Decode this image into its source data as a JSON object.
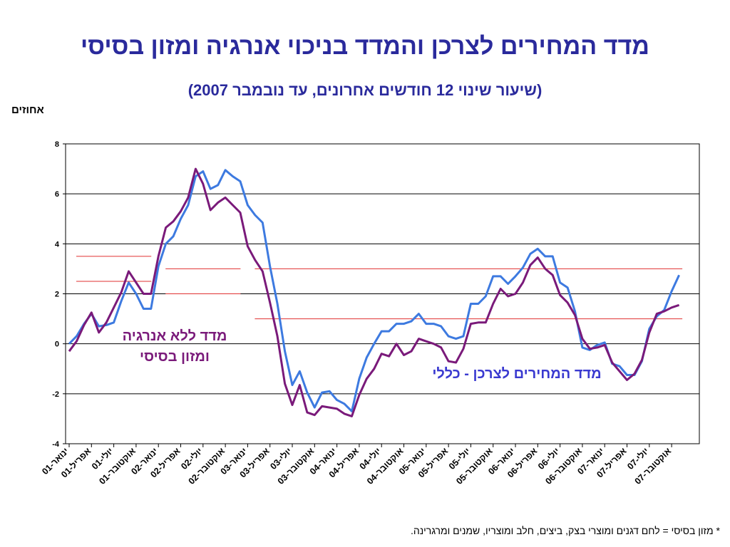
{
  "title": "מדד המחירים לצרכן והמדד בניכוי אנרגיה ומזון בסיסי",
  "subtitle": "(שיעור שינוי 12 חודשים אחרונים, עד נובמבר 2007)",
  "unit_label": "אחוזים",
  "footnote": "* מזון בסיסי = לחם דגנים ומוצרי בצק, ביצים, חלב ומוצריו, שמנים ומרגרינה.",
  "chart_data": {
    "type": "line",
    "title": "מדד המחירים לצרכן והמדד בניכוי אנרגיה ומזון בסיסי",
    "subtitle": "(שיעור שינוי 12 חודשים אחרונים, עד נובמבר 2007)",
    "ylabel": "אחוזים",
    "xlabel": "",
    "ylim": [
      -4,
      8
    ],
    "yticks": [
      "8",
      "6",
      "4",
      "2",
      "0",
      "-2",
      "-4"
    ],
    "ytick_values": [
      8,
      6,
      4,
      2,
      0,
      -2,
      -4
    ],
    "grid": true,
    "xtick_labels": [
      "ינואר-01",
      "אפריל-01",
      "יולי-01",
      "אוקטובר-01",
      "ינואר-02",
      "אפריל-02",
      "יולי-02",
      "אוקטובר-02",
      "ינואר-03",
      "אפריל-03",
      "יולי-03",
      "אוקטובר-03",
      "ינואר-04",
      "אפריל-04",
      "יולי-04",
      "אוקטובר-04",
      "ינואר-05",
      "אפריל-05",
      "יולי-05",
      "אוקטובר-05",
      "ינואר-06",
      "אפריל-06",
      "יולי-06",
      "אוקטובר-06",
      "ינואר-07",
      "אפריל-07",
      "יולי-07",
      "אוקטובר-07"
    ],
    "x_start": "ינואר-01",
    "x_end": "נובמבר-07",
    "series": [
      {
        "name": "מדד המחירים לצרכן - כללי",
        "color": "#3d7ae0",
        "values": [
          0.0,
          0.3,
          0.8,
          1.2,
          0.7,
          0.75,
          0.85,
          1.7,
          2.45,
          2.0,
          1.4,
          1.4,
          3.1,
          4.0,
          4.3,
          5.0,
          5.55,
          6.7,
          6.9,
          6.2,
          6.35,
          6.95,
          6.7,
          6.5,
          5.55,
          5.15,
          4.85,
          3.1,
          1.6,
          -0.3,
          -1.65,
          -1.1,
          -1.95,
          -2.55,
          -1.95,
          -1.9,
          -2.25,
          -2.4,
          -2.7,
          -1.4,
          -0.55,
          0.0,
          0.5,
          0.5,
          0.8,
          0.8,
          0.9,
          1.2,
          0.8,
          0.8,
          0.7,
          0.3,
          0.2,
          0.3,
          1.6,
          1.6,
          1.9,
          2.7,
          2.7,
          2.4,
          2.7,
          3.05,
          3.6,
          3.8,
          3.5,
          3.5,
          2.45,
          2.25,
          1.3,
          -0.15,
          -0.25,
          -0.05,
          0.05,
          -0.8,
          -0.9,
          -1.25,
          -1.25,
          -0.7,
          0.6,
          1.1,
          1.35,
          2.1,
          2.75
        ]
      },
      {
        "name": "מדד ללא אנרגיה ומזון בסיסי",
        "color": "#7a1a7a",
        "values": [
          -0.3,
          0.1,
          0.75,
          1.25,
          0.45,
          0.85,
          1.45,
          2.05,
          2.9,
          2.45,
          2.0,
          2.0,
          3.5,
          4.65,
          4.9,
          5.3,
          5.85,
          7.0,
          6.4,
          5.35,
          5.65,
          5.85,
          5.55,
          5.25,
          3.9,
          3.35,
          2.9,
          1.65,
          0.3,
          -1.6,
          -2.45,
          -1.65,
          -2.75,
          -2.85,
          -2.5,
          -2.55,
          -2.6,
          -2.8,
          -2.9,
          -2.05,
          -1.4,
          -1.0,
          -0.4,
          -0.5,
          0.0,
          -0.45,
          -0.3,
          0.2,
          0.1,
          0.0,
          -0.15,
          -0.7,
          -0.75,
          -0.2,
          0.8,
          0.85,
          0.85,
          1.6,
          2.2,
          1.9,
          2.0,
          2.45,
          3.15,
          3.45,
          3.0,
          2.75,
          1.95,
          1.65,
          1.15,
          0.2,
          -0.2,
          -0.15,
          -0.05,
          -0.75,
          -1.1,
          -1.45,
          -1.2,
          -0.65,
          0.45,
          1.2,
          1.3,
          1.45,
          1.55
        ]
      }
    ],
    "reference_lines": [
      {
        "y": 3.5,
        "from": "ינואר-01",
        "to": "ינואר-02",
        "color": "#e03030"
      },
      {
        "y": 2.5,
        "from": "ינואר-01",
        "to": "ינואר-02",
        "color": "#e03030"
      },
      {
        "y": 3.0,
        "from": "ינואר-02",
        "to": "ינואר-03",
        "color": "#e03030"
      },
      {
        "y": 2.0,
        "from": "ינואר-02",
        "to": "ינואר-03",
        "color": "#e03030"
      },
      {
        "y": 3.0,
        "from": "ינואר-03",
        "to": "אוקטובר-07",
        "color": "#e03030"
      },
      {
        "y": 1.0,
        "from": "ינואר-03",
        "to": "אוקטובר-07",
        "color": "#e03030"
      }
    ],
    "annotations": [
      {
        "id": "core",
        "lines": [
          "מדד ללא אנרגיה",
          "ומזון בסיסי"
        ]
      },
      {
        "id": "cpi",
        "lines": [
          "מדד המחירים לצרכן - כללי"
        ]
      }
    ]
  }
}
